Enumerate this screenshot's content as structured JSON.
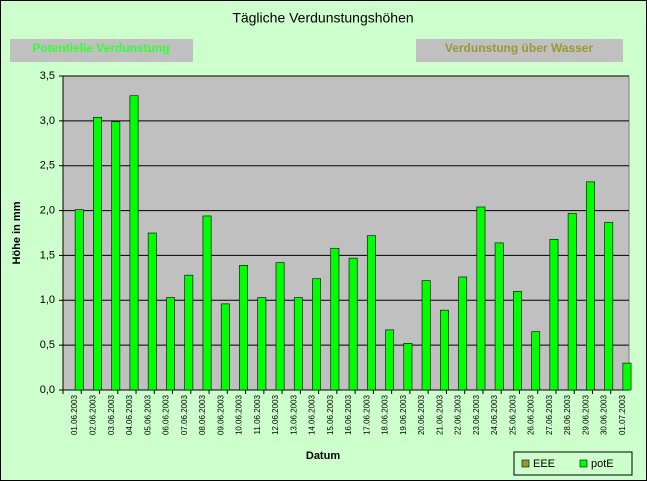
{
  "chart_data": {
    "type": "bar",
    "title": "Tägliche Verdunstungshöhen",
    "annotations": [
      "Potentielle Verdunstung",
      "Verdunstung über Wasser"
    ],
    "xlabel": "Datum",
    "ylabel": "Höhe in mm",
    "categories": [
      "01.06.2003",
      "02.06.2003",
      "03.06.2003",
      "04.06.2003",
      "05.06.2003",
      "06.06.2003",
      "07.06.2003",
      "08.06.2003",
      "09.06.2003",
      "10.06.2003",
      "11.06.2003",
      "12.06.2003",
      "13.06.2003",
      "14.06.2003",
      "15.06.2003",
      "16.06.2003",
      "17.06.2003",
      "18.06.2003",
      "19.06.2003",
      "20.06.2003",
      "21.06.2003",
      "22.06.2003",
      "23.06.2003",
      "24.06.2003",
      "25.06.2003",
      "26.06.2003",
      "27.06.2003",
      "28.06.2003",
      "29.06.2003",
      "30.06.2003",
      "01.07.2003"
    ],
    "series": [
      {
        "name": "EEE",
        "color": "#999933",
        "values": [
          null,
          null,
          null,
          null,
          null,
          null,
          null,
          null,
          null,
          null,
          null,
          null,
          null,
          null,
          null,
          null,
          null,
          null,
          null,
          null,
          null,
          null,
          null,
          null,
          null,
          null,
          null,
          null,
          null,
          null,
          null
        ]
      },
      {
        "name": "potE",
        "color": "#00ff00",
        "values": [
          2.01,
          3.04,
          2.99,
          3.28,
          1.75,
          1.03,
          1.28,
          1.94,
          0.96,
          1.39,
          1.03,
          1.42,
          1.03,
          1.24,
          1.58,
          1.47,
          1.72,
          0.67,
          0.52,
          1.22,
          0.89,
          1.26,
          2.04,
          1.64,
          1.1,
          0.65,
          1.68,
          1.97,
          2.32,
          1.87,
          0.3
        ]
      }
    ],
    "ylim": [
      0,
      3.5
    ],
    "yticks": [
      {
        "value": 0,
        "label": "0,0"
      },
      {
        "value": 0.5,
        "label": "0,5"
      },
      {
        "value": 1,
        "label": "1,0"
      },
      {
        "value": 1.5,
        "label": "1,5"
      },
      {
        "value": 2,
        "label": "2,0"
      },
      {
        "value": 2.5,
        "label": "2,5"
      },
      {
        "value": 3,
        "label": "3,0"
      },
      {
        "value": 3.5,
        "label": "3,5"
      }
    ],
    "grid": true,
    "legend": "lower right"
  }
}
